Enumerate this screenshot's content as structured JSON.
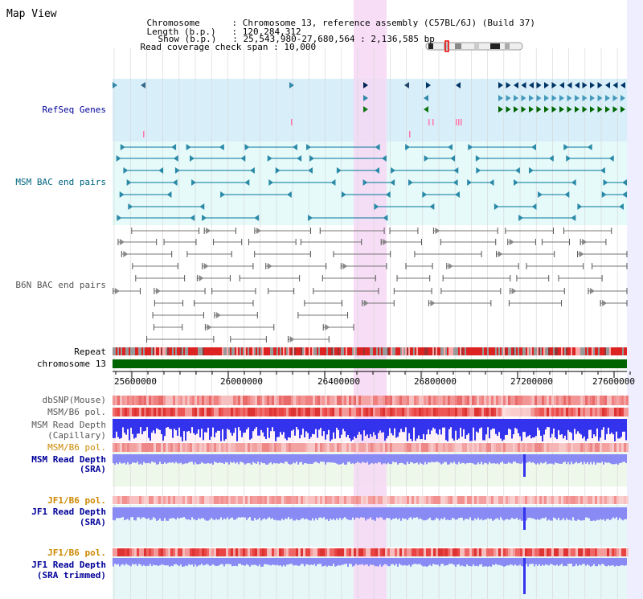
{
  "view_title": "Map View",
  "info": {
    "chromosome_label": "Chromosome",
    "chromosome_value": "Chromosome 13, reference assembly (C57BL/6J) (Build 37)",
    "length_label": "Length (b.p.)",
    "length_value": "120,284,312",
    "show_label": "Show (b.p.)",
    "show_value": "25,543,980-27,680,564 : 2,136,585 bp",
    "span_label": "Read coverage check span",
    "span_value": "10,000"
  },
  "tracks": {
    "refseq": "RefSeq Genes",
    "msm_bac": "MSM BAC end pairs",
    "b6n_bac": "B6N BAC end pairs",
    "repeat": "Repeat",
    "chromosome": "chromosome 13",
    "dbsnp": "dbSNP(Mouse)",
    "msm_b6_pol_1": "MSM/B6 pol.",
    "msm_depth_cap_1": "MSM Read Depth",
    "msm_depth_cap_2": "(Capillary)",
    "msm_b6_pol_2": "MSM/B6 pol.",
    "msm_depth_sra_1": "MSM Read Depth",
    "msm_depth_sra_2": "(SRA)",
    "jf1_b6_pol_1": "JF1/B6 pol.",
    "jf1_depth_sra_1": "JF1 Read Depth",
    "jf1_depth_sra_2": "(SRA)",
    "jf1_b6_pol_2": "JF1/B6 pol.",
    "jf1_depth_trim_1": "JF1 Read Depth",
    "jf1_depth_trim_2": "(SRA trimmed)"
  },
  "axis_ticks": [
    "25600000",
    "26000000",
    "26400000",
    "26800000",
    "27200000",
    "27600000"
  ],
  "colors": {
    "refseq_bg": "#d8effa",
    "msm_bg": "#e6fafa",
    "highlight": "#f6d8f4",
    "chromosome_bar": "#006400",
    "refseq_label": "#000099",
    "msm_label": "#006680",
    "b6n_label": "#555555",
    "depth_label": "#000099",
    "pol_label": "#cc8800",
    "depth_blue": "#3333ee",
    "depth_light": "#8a8af5"
  }
}
